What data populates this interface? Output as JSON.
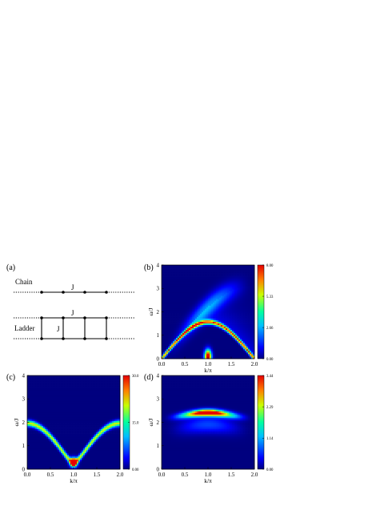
{
  "schematic": {
    "panel_label": "(a)",
    "chain_label": "Chain",
    "ladder_label": "Ladder",
    "coupling_label": "J"
  },
  "chart_data": [
    {
      "panel_label": "(b)",
      "type": "heatmap",
      "xlabel": "k/π",
      "ylabel": "ω/J",
      "xlim": [
        0,
        2
      ],
      "ylim": [
        0,
        4
      ],
      "xticks": [
        "0.0",
        "0.5",
        "1.0",
        "1.5",
        "2.0"
      ],
      "yticks": [
        "0",
        "1",
        "2",
        "3",
        "4"
      ],
      "colorbar_ticks": [
        "8.00",
        "5.33",
        "2.66",
        "0.00"
      ],
      "colorbar_max": 8.0,
      "spectrum": "chain-continuum",
      "lower_edge_factor": 1.5708,
      "upper_edge_factor": 3.1416
    },
    {
      "panel_label": "(c)",
      "type": "heatmap",
      "xlabel": "k/π",
      "ylabel": "ω/J",
      "xlim": [
        0,
        2
      ],
      "ylim": [
        0,
        4
      ],
      "xticks": [
        "0.0",
        "0.5",
        "1.0",
        "1.5",
        "2.0"
      ],
      "yticks": [
        "0",
        "1",
        "2",
        "3",
        "4"
      ],
      "colorbar_ticks": [
        "30.0",
        "15.0",
        "0.00"
      ],
      "colorbar_max": 30.0,
      "spectrum": "ladder-magnon",
      "gap": 0.3,
      "zone_boundary_energy": 1.9
    },
    {
      "panel_label": "(d)",
      "type": "heatmap",
      "xlabel": "k/π",
      "ylabel": "ω/J",
      "xlim": [
        0,
        2
      ],
      "ylim": [
        0,
        4
      ],
      "xticks": [
        "0.0",
        "0.5",
        "1.0",
        "1.5",
        "2.0"
      ],
      "yticks": [
        "0",
        "1",
        "2",
        "3",
        "4"
      ],
      "colorbar_ticks": [
        "3.44",
        "2.29",
        "1.14",
        "0.00"
      ],
      "colorbar_max": 3.44,
      "spectrum": "ladder-bound-state",
      "bound_state_energy": 2.3
    }
  ]
}
